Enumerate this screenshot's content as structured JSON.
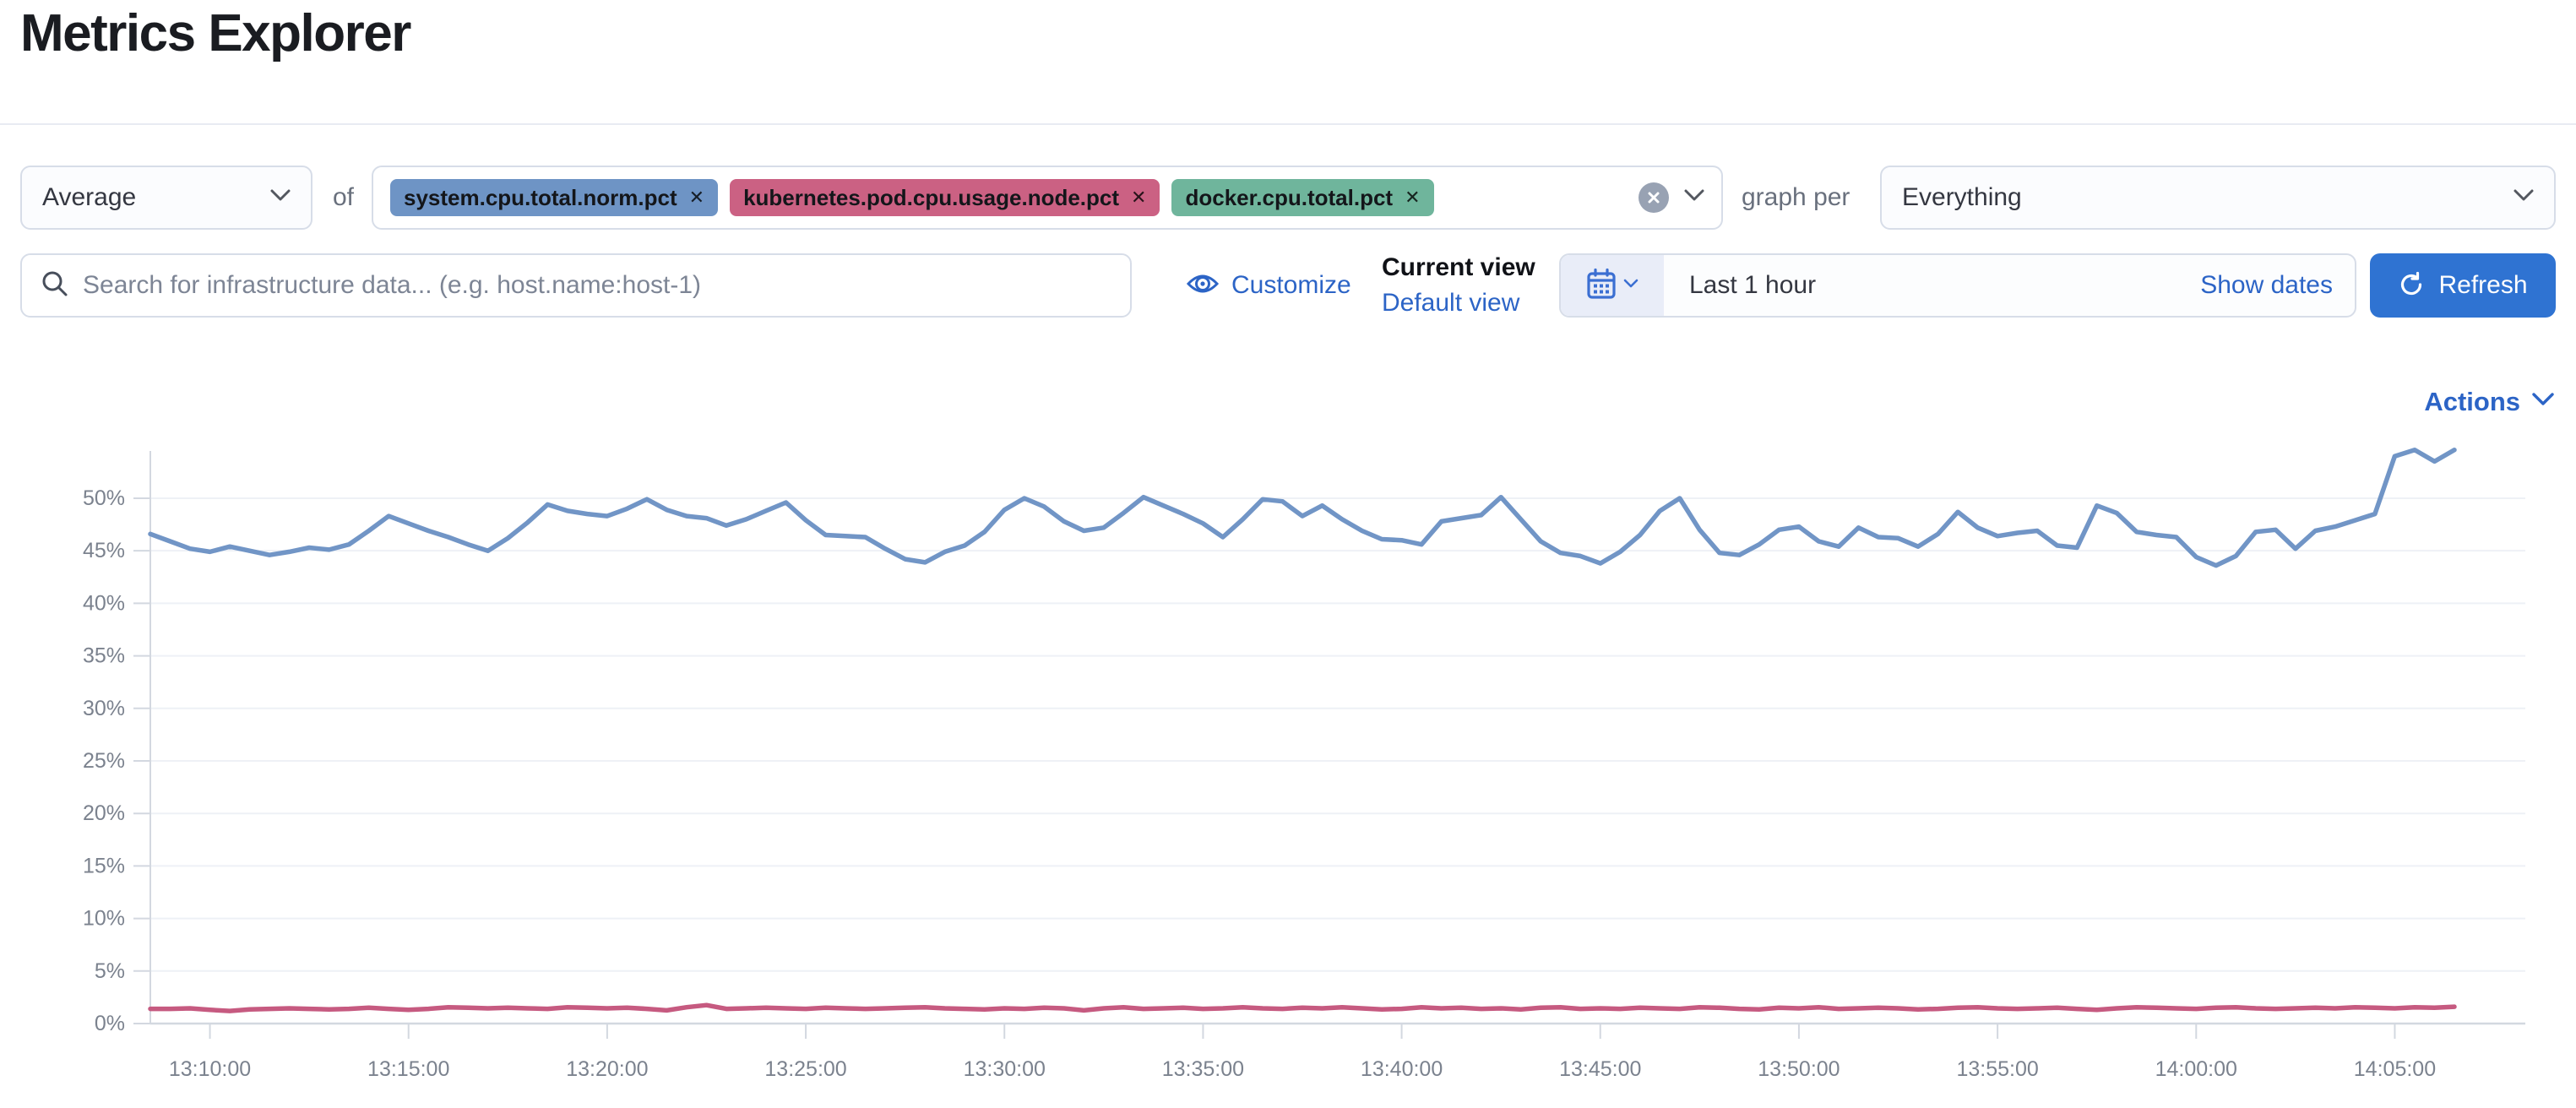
{
  "header": {
    "title": "Metrics Explorer"
  },
  "icons": {
    "remove_x": "✕"
  },
  "toolbar": {
    "aggregation_select": {
      "value": "Average"
    },
    "of_label": "of",
    "metrics_combobox": {
      "badges": [
        {
          "label": "system.cpu.total.norm.pct",
          "color": "#6e94c5"
        },
        {
          "label": "kubernetes.pod.cpu.usage.node.pct",
          "color": "#cb6183"
        },
        {
          "label": "docker.cpu.total.pct",
          "color": "#6fb59c"
        }
      ]
    },
    "graph_per_label": "graph per",
    "group_by_select": {
      "value": "Everything"
    }
  },
  "filter_bar": {
    "search": {
      "placeholder": "Search for infrastructure data... (e.g. host.name:host-1)"
    },
    "customize_label": "Customize",
    "current_view_label": "Current view",
    "default_view_label": "Default view",
    "time_picker": {
      "range_label": "Last 1 hour",
      "show_dates_label": "Show dates"
    },
    "refresh_label": "Refresh"
  },
  "actions_menu": {
    "label": "Actions"
  },
  "chart_data": {
    "type": "line",
    "title": "",
    "xlabel": "",
    "ylabel": "",
    "grid": true,
    "legend": false,
    "ylim": [
      0,
      54.5
    ],
    "y_tick_values": [
      0,
      5,
      10,
      15,
      20,
      25,
      30,
      35,
      40,
      45,
      50
    ],
    "y_tick_labels": [
      "0%",
      "5%",
      "10%",
      "15%",
      "20%",
      "25%",
      "30%",
      "35%",
      "40%",
      "45%",
      "50%"
    ],
    "x_tick_labels": [
      "13:10:00",
      "13:15:00",
      "13:20:00",
      "13:25:00",
      "13:30:00",
      "13:35:00",
      "13:40:00",
      "13:45:00",
      "13:50:00",
      "13:55:00",
      "14:00:00",
      "14:05:00"
    ],
    "time_start": "13:08:30",
    "interval_seconds": 30,
    "first_tick_index": 3,
    "tick_index_step": 10,
    "series": [
      {
        "name": "system.cpu.total.norm.pct",
        "color": "#7195c6",
        "values": [
          46.6,
          45.9,
          45.2,
          44.9,
          45.4,
          45.0,
          44.6,
          44.9,
          45.3,
          45.1,
          45.6,
          46.9,
          48.3,
          47.6,
          46.9,
          46.3,
          45.6,
          45.0,
          46.2,
          47.7,
          49.4,
          48.8,
          48.5,
          48.3,
          49.0,
          49.9,
          48.9,
          48.3,
          48.1,
          47.4,
          48.0,
          48.8,
          49.6,
          47.9,
          46.5,
          46.4,
          46.3,
          45.2,
          44.2,
          43.9,
          44.9,
          45.5,
          46.8,
          48.9,
          50.0,
          49.2,
          47.8,
          46.9,
          47.2,
          48.6,
          50.1,
          49.3,
          48.5,
          47.6,
          46.3,
          48.0,
          49.9,
          49.7,
          48.3,
          49.3,
          48.0,
          46.9,
          46.1,
          46.0,
          45.6,
          47.8,
          48.1,
          48.4,
          50.1,
          48.0,
          45.9,
          44.8,
          44.5,
          43.8,
          44.9,
          46.5,
          48.8,
          50.0,
          47.0,
          44.8,
          44.6,
          45.6,
          47.0,
          47.3,
          45.9,
          45.4,
          47.2,
          46.3,
          46.2,
          45.4,
          46.6,
          48.7,
          47.2,
          46.4,
          46.7,
          46.9,
          45.5,
          45.3,
          49.3,
          48.6,
          46.8,
          46.5,
          46.3,
          44.4,
          43.6,
          44.5,
          46.8,
          47.0,
          45.2,
          46.9,
          47.3,
          47.9,
          48.5,
          54.0,
          54.6,
          53.5,
          54.6
        ]
      },
      {
        "name": "kubernetes.pod.cpu.usage.node.pct",
        "color": "#c65a80",
        "values": [
          1.4,
          1.4,
          1.45,
          1.3,
          1.2,
          1.35,
          1.4,
          1.45,
          1.4,
          1.35,
          1.4,
          1.5,
          1.4,
          1.3,
          1.4,
          1.55,
          1.5,
          1.45,
          1.5,
          1.45,
          1.4,
          1.55,
          1.5,
          1.45,
          1.5,
          1.4,
          1.25,
          1.55,
          1.75,
          1.4,
          1.45,
          1.5,
          1.45,
          1.4,
          1.5,
          1.45,
          1.4,
          1.45,
          1.5,
          1.55,
          1.45,
          1.4,
          1.35,
          1.45,
          1.4,
          1.5,
          1.45,
          1.25,
          1.45,
          1.55,
          1.4,
          1.45,
          1.5,
          1.4,
          1.45,
          1.55,
          1.45,
          1.4,
          1.5,
          1.45,
          1.55,
          1.45,
          1.35,
          1.4,
          1.55,
          1.45,
          1.5,
          1.4,
          1.45,
          1.35,
          1.5,
          1.55,
          1.4,
          1.45,
          1.4,
          1.5,
          1.45,
          1.4,
          1.55,
          1.5,
          1.4,
          1.35,
          1.5,
          1.45,
          1.55,
          1.4,
          1.45,
          1.5,
          1.45,
          1.35,
          1.4,
          1.5,
          1.55,
          1.45,
          1.4,
          1.45,
          1.5,
          1.4,
          1.3,
          1.45,
          1.55,
          1.5,
          1.45,
          1.4,
          1.5,
          1.55,
          1.45,
          1.4,
          1.45,
          1.5,
          1.45,
          1.55,
          1.5,
          1.45,
          1.55,
          1.5,
          1.6
        ]
      }
    ]
  }
}
